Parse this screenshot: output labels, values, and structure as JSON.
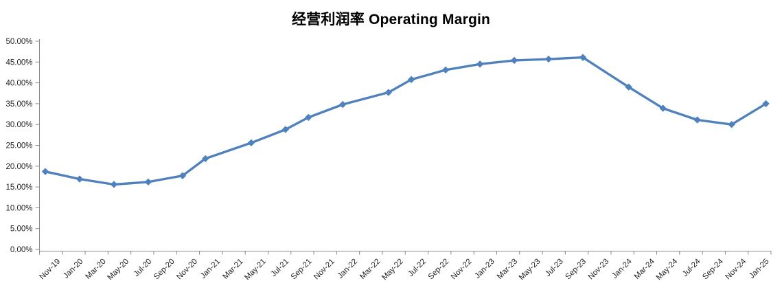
{
  "title": "经营利润率 Operating Margin",
  "chart_data": {
    "type": "line",
    "title": "经营利润率 Operating Margin",
    "grid": false,
    "legend": "none",
    "line_color": "#4F81BD",
    "marker_shape": "diamond",
    "marker_color": "#4F81BD",
    "axis_line_color": "#8a8a8a",
    "tick_label_color": "#1f1f1f",
    "y_axis": {
      "min": 0,
      "max": 50,
      "step": 5,
      "format": "percent-2dp",
      "tick_labels": [
        "0.00%",
        "5.00%",
        "10.00%",
        "15.00%",
        "20.00%",
        "25.00%",
        "30.00%",
        "35.00%",
        "40.00%",
        "45.00%",
        "50.00%"
      ]
    },
    "x_axis": {
      "months_per_label": 2,
      "label_rotation_deg": 45,
      "tick_labels": [
        "Nov-19",
        "Jan-20",
        "Mar-20",
        "May-20",
        "Jul-20",
        "Sep-20",
        "Nov-20",
        "Jan-21",
        "Mar-21",
        "May-21",
        "Jul-21",
        "Sep-21",
        "Nov-21",
        "Jan-22",
        "Mar-22",
        "May-22",
        "Jul-22",
        "Sep-22",
        "Nov-22",
        "Jan-23",
        "Mar-23",
        "May-23",
        "Jul-23",
        "Sep-23",
        "Nov-23",
        "Jan-24",
        "Mar-24",
        "May-24",
        "Jul-24",
        "Sep-24",
        "Nov-24",
        "Jan-25"
      ]
    },
    "series": [
      {
        "name": "经营利润率 Operating Margin",
        "points": [
          {
            "month_offset": 0,
            "value_pct": 18.7
          },
          {
            "month_offset": 3,
            "value_pct": 16.9
          },
          {
            "month_offset": 6,
            "value_pct": 15.6
          },
          {
            "month_offset": 9,
            "value_pct": 16.2
          },
          {
            "month_offset": 12,
            "value_pct": 17.7
          },
          {
            "month_offset": 14,
            "value_pct": 21.8
          },
          {
            "month_offset": 18,
            "value_pct": 25.6
          },
          {
            "month_offset": 21,
            "value_pct": 28.8
          },
          {
            "month_offset": 23,
            "value_pct": 31.7
          },
          {
            "month_offset": 26,
            "value_pct": 34.8
          },
          {
            "month_offset": 30,
            "value_pct": 37.7
          },
          {
            "month_offset": 32,
            "value_pct": 40.8
          },
          {
            "month_offset": 35,
            "value_pct": 43.1
          },
          {
            "month_offset": 38,
            "value_pct": 44.5
          },
          {
            "month_offset": 41,
            "value_pct": 45.4
          },
          {
            "month_offset": 44,
            "value_pct": 45.7
          },
          {
            "month_offset": 47,
            "value_pct": 46.1
          },
          {
            "month_offset": 51,
            "value_pct": 39.0
          },
          {
            "month_offset": 54,
            "value_pct": 33.9
          },
          {
            "month_offset": 57,
            "value_pct": 31.1
          },
          {
            "month_offset": 60,
            "value_pct": 30.0
          },
          {
            "month_offset": 63,
            "value_pct": 35.0
          }
        ]
      }
    ]
  }
}
